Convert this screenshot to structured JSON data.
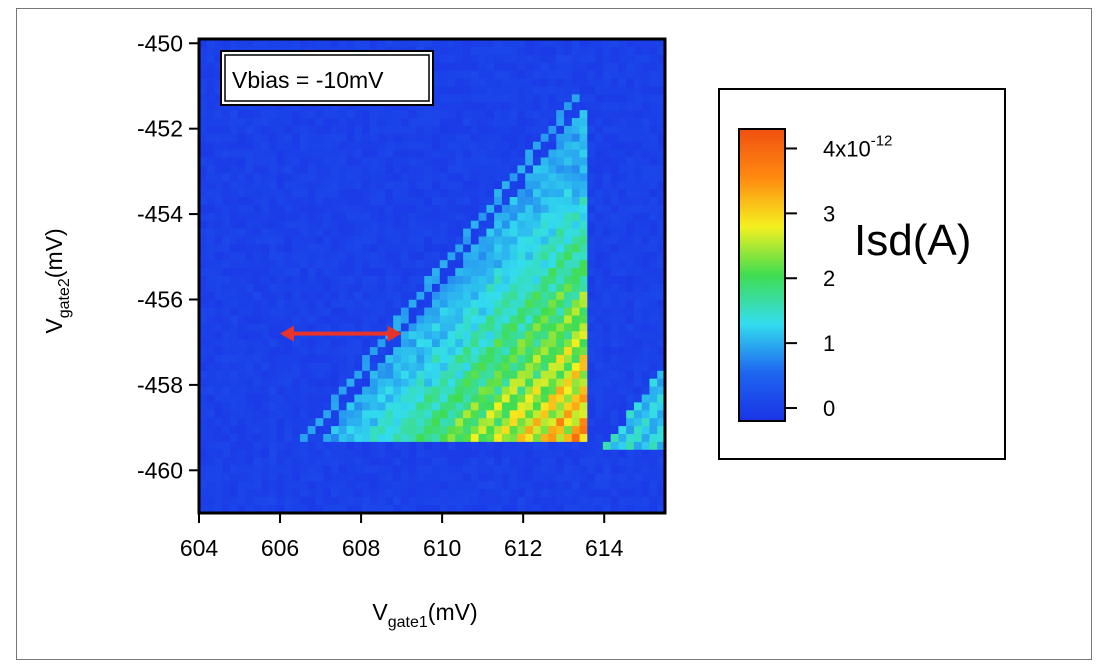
{
  "chart_data": {
    "type": "heatmap",
    "xlabel": "V",
    "xlabel_sub": "gate1",
    "xlabel_unit": "(mV)",
    "ylabel": "V",
    "ylabel_sub": "gate2",
    "ylabel_unit": "(mV)",
    "xlim": [
      604,
      615.5
    ],
    "ylim": [
      -461,
      -449.9
    ],
    "x_ticks": [
      604,
      606,
      608,
      610,
      612,
      614
    ],
    "y_ticks": [
      -450,
      -452,
      -454,
      -456,
      -458,
      -460
    ],
    "annotation": "Vbias = -10mV",
    "arrow": {
      "x": [
        606,
        609
      ],
      "y": -456.8,
      "color": "#e8322a",
      "direction": "both"
    },
    "colorbar": {
      "title": "Isd(A)",
      "tick_values": [
        0,
        1,
        2,
        3,
        4
      ],
      "tick_labels": [
        "0",
        "1",
        "2",
        "3",
        "4x10"
      ],
      "exponent": "-12",
      "range": [
        -0.2,
        4.3
      ],
      "colors": [
        "#1a33e6",
        "#1e66f0",
        "#33ddee",
        "#40dd50",
        "#f4f020",
        "#ff8a10",
        "#f05010"
      ]
    },
    "features": {
      "background_value": 0,
      "main_triangle": {
        "base_y": -459.3,
        "base_x": [
          607,
          613.5
        ],
        "apex": [
          613.5,
          -451.5
        ],
        "max_value": 4
      },
      "second_triangle": {
        "base_y": -459.5,
        "base_x": [
          614,
          615.5
        ],
        "apex": [
          615.5,
          -457.5
        ],
        "max_value": 1.6
      }
    }
  }
}
